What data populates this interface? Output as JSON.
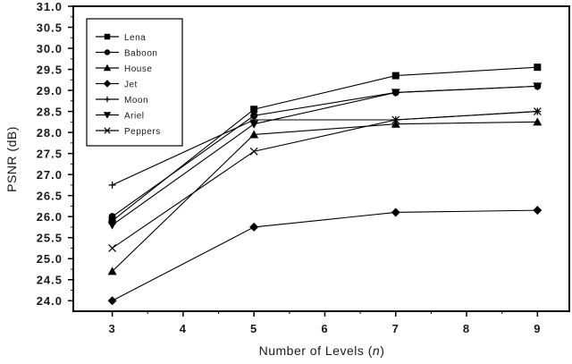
{
  "chart_data": {
    "type": "line",
    "title": "",
    "xlabel": "Number of Levels (n)",
    "ylabel": "PSNR (dB)",
    "x": [
      3,
      5,
      7,
      9
    ],
    "xlim": [
      2.45,
      9.45
    ],
    "ylim": [
      23.75,
      31.0
    ],
    "xticks": [
      3,
      4,
      5,
      6,
      7,
      8,
      9
    ],
    "yticks": [
      "24.0",
      "24.5",
      "25.0",
      "25.5",
      "26.0",
      "26.5",
      "27.0",
      "27.5",
      "28.0",
      "28.5",
      "29.0",
      "29.5",
      "30.0",
      "30.5",
      "31.0"
    ],
    "grid": false,
    "legend_position": "upper-left-inside",
    "series": [
      {
        "name": "Lena",
        "marker": "square",
        "values": [
          25.9,
          28.55,
          29.35,
          29.55
        ]
      },
      {
        "name": "Baboon",
        "marker": "circle",
        "values": [
          26.0,
          28.4,
          28.95,
          29.1
        ]
      },
      {
        "name": "House",
        "marker": "triangle-up",
        "values": [
          24.7,
          27.95,
          28.2,
          28.25
        ]
      },
      {
        "name": "Jet",
        "marker": "diamond",
        "values": [
          24.0,
          25.75,
          26.1,
          26.15
        ]
      },
      {
        "name": "Moon",
        "marker": "plus",
        "values": [
          26.75,
          28.3,
          28.3,
          28.5
        ]
      },
      {
        "name": "Ariel",
        "marker": "triangle-down",
        "values": [
          25.8,
          28.2,
          28.95,
          29.1
        ]
      },
      {
        "name": "Peppers",
        "marker": "x",
        "values": [
          25.25,
          27.55,
          28.3,
          28.5
        ]
      }
    ]
  },
  "colors": {
    "line": "#000000",
    "tick_label": "#1a1a1a",
    "background": "#ffffff"
  }
}
